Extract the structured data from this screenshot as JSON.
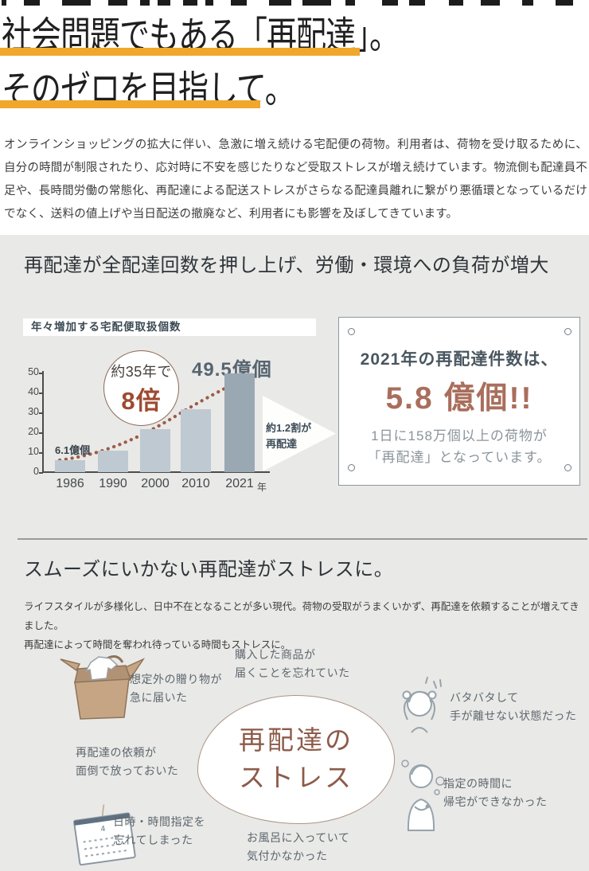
{
  "hero": {
    "title_line1": "社会問題でもある「再配達」。",
    "title_line2": "そのゼロを目指して。",
    "underline_color": "#f0a72b",
    "intro": "オンラインショッピングの拡大に伴い、急激に増え続ける宅配便の荷物。利用者は、荷物を受け取るために、自分の時間が制限されたり、応対時に不安を感じたりなど受取ストレスが増え続けています。物流側も配達員不足や、長時間労働の常態化、再配達による配送ストレスがさらなる配達員離れに繋がり悪循環となっているだけでなく、送料の値上げや当日配送の撤廃など、利用者にも影響を及ぼしてきています。"
  },
  "section_burden": {
    "heading": "再配達が全配達回数を押し上げ、労働・環境への負荷が増大",
    "stat_card": {
      "line1": "2021年の再配達件数は、",
      "big_number": "5.8 億個!!",
      "desc": "1日に158万個以上の荷物が\n「再配達」となっています。",
      "big_number_color": "#a96e5c"
    }
  },
  "chart_data": {
    "type": "bar",
    "title": "年々増加する宅配便取扱個数",
    "categories": [
      "1986",
      "1990",
      "2000",
      "2010",
      "2021"
    ],
    "values": [
      6.1,
      11,
      21.5,
      31.5,
      49.5
    ],
    "value_unit": "億個",
    "x_unit_label": "年",
    "ylim": [
      0,
      50
    ],
    "yticks": [
      0,
      10,
      20,
      30,
      40,
      50
    ],
    "bar_colors": [
      "#bec9d1",
      "#bec9d1",
      "#bec9d1",
      "#bec9d1",
      "#9aa8b3"
    ],
    "grid": false,
    "trend_line": "dotted rising curve, color #9c5c47",
    "annotations": {
      "first_bar_label": "6.1億個",
      "last_bar_label": "49.5億個",
      "badge_line1": "約35年で",
      "badge_line2": "8倍",
      "arrow_note": "約1.2割が\n再配達"
    }
  },
  "section_stress": {
    "heading": "スムーズにいかない再配達がストレスに。",
    "intro": "ライフスタイルが多様化し、日中不在となることが多い現代。荷物の受取がうまくいかず、再配達を依頼することが増えてきました。\n再配達によって時間を奪われ待っている時間もストレスに。",
    "center_label": "再配達の\nストレス",
    "center_text_color": "#8d5b49",
    "causes": [
      {
        "label": "想定外の贈り物が\n急に届いた",
        "icon": "gift-box-icon"
      },
      {
        "label": "購入した商品が\n届くことを忘れていた",
        "icon": ""
      },
      {
        "label": "バタバタして\n手が離せない状態だった",
        "icon": "flustered-person-icon"
      },
      {
        "label": "再配達の依頼が\n面倒で放っておいた",
        "icon": ""
      },
      {
        "label": "日時・時間指定を\n忘れてしまった",
        "icon": "calendar-icon"
      },
      {
        "label": "お風呂に入っていて\n気付かなかった",
        "icon": ""
      },
      {
        "label": "指定の時間に\n帰宅ができなかった",
        "icon": "waiting-person-icon"
      }
    ]
  },
  "colors": {
    "accent_yellow": "#f0a72b",
    "accent_brick": "#9c5c47",
    "gray_band": "#e9e9e7",
    "bar_light": "#bec9d1",
    "bar_dark": "#9aa8b3",
    "dark_slate_text": "#49565f"
  }
}
